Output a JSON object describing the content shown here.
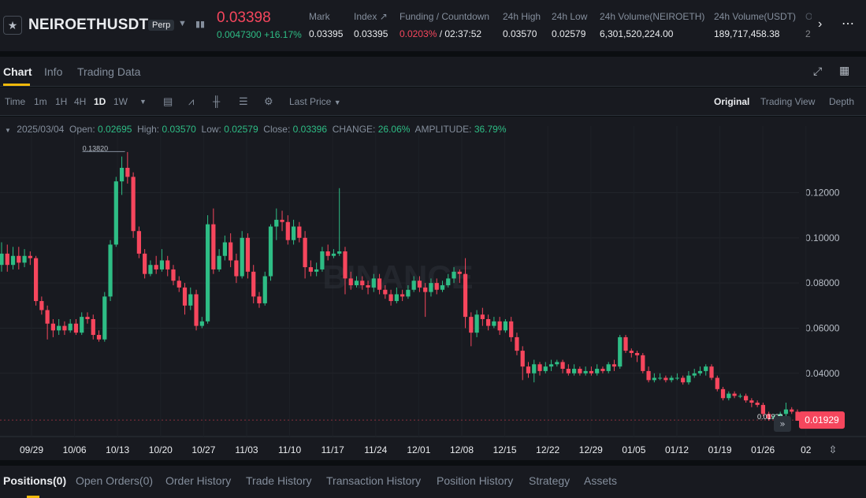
{
  "ticker": {
    "star_icon": "star-icon",
    "symbol": "NEIROETHUSDT",
    "badge": "Perp",
    "caret_icon": "caret-down-icon",
    "chart_icon": "mini-chart-icon",
    "last_price": "0.03398",
    "change_abs": "0.0047300",
    "change_pct": "+16.17%",
    "stats": [
      {
        "label": "Mark",
        "value": "0.03395"
      },
      {
        "label": "Index ↗",
        "value": "0.03395"
      },
      {
        "label": "Funding / Countdown",
        "value_red": "0.0203%",
        "value": " / 02:37:52"
      },
      {
        "label": "24h High",
        "value": "0.03570"
      },
      {
        "label": "24h Low",
        "value": "0.02579"
      },
      {
        "label": "24h Volume(NEIROETH)",
        "value": "6,301,520,224.00"
      },
      {
        "label": "24h Volume(USDT)",
        "value": "189,717,458.38"
      },
      {
        "label": "O",
        "value": "2"
      }
    ]
  },
  "chart_tabs": {
    "items": [
      "Chart",
      "Info",
      "Trading Data"
    ],
    "active": "Chart"
  },
  "toolbar": {
    "time_label": "Time",
    "intervals": [
      "1m",
      "1H",
      "4H",
      "1D",
      "1W"
    ],
    "active_interval": "1D",
    "price_type": "Last Price",
    "views": [
      "Original",
      "Trading View",
      "Depth"
    ],
    "active_view": "Original"
  },
  "ohlc": {
    "date": "2025/03/04",
    "open_label": "Open:",
    "open": "0.02695",
    "high_label": "High:",
    "high": "0.03570",
    "low_label": "Low:",
    "low": "0.02579",
    "close_label": "Close:",
    "close": "0.03396",
    "change_label": "CHANGE:",
    "change": "26.06%",
    "amplitude_label": "AMPLITUDE:",
    "amplitude": "36.79%"
  },
  "chart_data": {
    "type": "candlestick",
    "y_ticks": [
      "0.12000",
      "0.10000",
      "0.08000",
      "0.06000",
      "0.04000"
    ],
    "x_labels": [
      "09/29",
      "10/06",
      "10/13",
      "10/20",
      "10/27",
      "11/03",
      "11/10",
      "11/17",
      "11/24",
      "12/01",
      "12/08",
      "12/15",
      "12/22",
      "12/29",
      "01/05",
      "01/12",
      "01/19",
      "01/26",
      "02"
    ],
    "max_label": "0.13820",
    "min_label": "0.01929",
    "current_price_label": "0.01929",
    "watermark": "BINANCE",
    "ylim": [
      0.012,
      0.146
    ],
    "colors": {
      "up": "#2ebd85",
      "down": "#f6465d"
    },
    "candles": [
      [
        0.088,
        0.093,
        0.098,
        0.085
      ],
      [
        0.093,
        0.088,
        0.097,
        0.085
      ],
      [
        0.088,
        0.092,
        0.096,
        0.086
      ],
      [
        0.092,
        0.089,
        0.096,
        0.086
      ],
      [
        0.089,
        0.092,
        0.095,
        0.087
      ],
      [
        0.092,
        0.091,
        0.094,
        0.088
      ],
      [
        0.091,
        0.072,
        0.092,
        0.07
      ],
      [
        0.072,
        0.068,
        0.074,
        0.066
      ],
      [
        0.068,
        0.062,
        0.07,
        0.055
      ],
      [
        0.062,
        0.059,
        0.064,
        0.056
      ],
      [
        0.059,
        0.061,
        0.064,
        0.057
      ],
      [
        0.061,
        0.059,
        0.063,
        0.057
      ],
      [
        0.059,
        0.062,
        0.064,
        0.058
      ],
      [
        0.062,
        0.058,
        0.064,
        0.057
      ],
      [
        0.058,
        0.065,
        0.067,
        0.057
      ],
      [
        0.065,
        0.064,
        0.067,
        0.062
      ],
      [
        0.064,
        0.057,
        0.066,
        0.055
      ],
      [
        0.057,
        0.055,
        0.059,
        0.054
      ],
      [
        0.055,
        0.074,
        0.076,
        0.054
      ],
      [
        0.074,
        0.097,
        0.099,
        0.072
      ],
      [
        0.097,
        0.125,
        0.127,
        0.096
      ],
      [
        0.125,
        0.131,
        0.136,
        0.119
      ],
      [
        0.131,
        0.127,
        0.138,
        0.124
      ],
      [
        0.127,
        0.103,
        0.129,
        0.1
      ],
      [
        0.103,
        0.093,
        0.105,
        0.091
      ],
      [
        0.093,
        0.084,
        0.095,
        0.082
      ],
      [
        0.084,
        0.088,
        0.09,
        0.083
      ],
      [
        0.088,
        0.086,
        0.092,
        0.084
      ],
      [
        0.086,
        0.09,
        0.095,
        0.085
      ],
      [
        0.09,
        0.086,
        0.092,
        0.083
      ],
      [
        0.086,
        0.081,
        0.088,
        0.079
      ],
      [
        0.081,
        0.078,
        0.083,
        0.076
      ],
      [
        0.078,
        0.07,
        0.08,
        0.066
      ],
      [
        0.07,
        0.075,
        0.078,
        0.068
      ],
      [
        0.075,
        0.061,
        0.077,
        0.059
      ],
      [
        0.061,
        0.063,
        0.065,
        0.06
      ],
      [
        0.063,
        0.106,
        0.11,
        0.062
      ],
      [
        0.106,
        0.086,
        0.113,
        0.084
      ],
      [
        0.086,
        0.092,
        0.095,
        0.085
      ],
      [
        0.092,
        0.098,
        0.101,
        0.09
      ],
      [
        0.098,
        0.09,
        0.102,
        0.087
      ],
      [
        0.09,
        0.083,
        0.093,
        0.08
      ],
      [
        0.083,
        0.1,
        0.103,
        0.082
      ],
      [
        0.1,
        0.085,
        0.102,
        0.082
      ],
      [
        0.085,
        0.074,
        0.088,
        0.071
      ],
      [
        0.074,
        0.071,
        0.076,
        0.069
      ],
      [
        0.071,
        0.083,
        0.085,
        0.07
      ],
      [
        0.083,
        0.105,
        0.106,
        0.081
      ],
      [
        0.105,
        0.108,
        0.113,
        0.099
      ],
      [
        0.108,
        0.107,
        0.112,
        0.103
      ],
      [
        0.107,
        0.099,
        0.11,
        0.097
      ],
      [
        0.099,
        0.105,
        0.108,
        0.097
      ],
      [
        0.105,
        0.1,
        0.107,
        0.098
      ],
      [
        0.1,
        0.087,
        0.103,
        0.082
      ],
      [
        0.087,
        0.085,
        0.09,
        0.083
      ],
      [
        0.085,
        0.086,
        0.089,
        0.083
      ],
      [
        0.086,
        0.094,
        0.096,
        0.085
      ],
      [
        0.094,
        0.092,
        0.097,
        0.09
      ],
      [
        0.092,
        0.093,
        0.095,
        0.091
      ],
      [
        0.093,
        0.094,
        0.122,
        0.092
      ],
      [
        0.094,
        0.082,
        0.096,
        0.075
      ],
      [
        0.082,
        0.079,
        0.085,
        0.077
      ],
      [
        0.079,
        0.081,
        0.083,
        0.078
      ],
      [
        0.081,
        0.079,
        0.083,
        0.077
      ],
      [
        0.079,
        0.078,
        0.081,
        0.075
      ],
      [
        0.078,
        0.082,
        0.084,
        0.076
      ],
      [
        0.082,
        0.077,
        0.084,
        0.075
      ],
      [
        0.077,
        0.075,
        0.079,
        0.073
      ],
      [
        0.075,
        0.072,
        0.077,
        0.07
      ],
      [
        0.072,
        0.075,
        0.078,
        0.071
      ],
      [
        0.075,
        0.074,
        0.077,
        0.072
      ],
      [
        0.074,
        0.077,
        0.079,
        0.073
      ],
      [
        0.077,
        0.081,
        0.083,
        0.076
      ],
      [
        0.081,
        0.078,
        0.083,
        0.076
      ],
      [
        0.078,
        0.076,
        0.08,
        0.065
      ],
      [
        0.076,
        0.08,
        0.082,
        0.074
      ],
      [
        0.08,
        0.077,
        0.082,
        0.075
      ],
      [
        0.077,
        0.079,
        0.081,
        0.076
      ],
      [
        0.079,
        0.082,
        0.084,
        0.078
      ],
      [
        0.082,
        0.085,
        0.087,
        0.08
      ],
      [
        0.085,
        0.084,
        0.086,
        0.08
      ],
      [
        0.084,
        0.065,
        0.091,
        0.06
      ],
      [
        0.065,
        0.058,
        0.067,
        0.052
      ],
      [
        0.058,
        0.066,
        0.068,
        0.056
      ],
      [
        0.066,
        0.064,
        0.069,
        0.061
      ],
      [
        0.064,
        0.061,
        0.066,
        0.059
      ],
      [
        0.061,
        0.063,
        0.065,
        0.06
      ],
      [
        0.063,
        0.059,
        0.065,
        0.057
      ],
      [
        0.059,
        0.063,
        0.064,
        0.058
      ],
      [
        0.063,
        0.056,
        0.065,
        0.054
      ],
      [
        0.056,
        0.05,
        0.058,
        0.048
      ],
      [
        0.05,
        0.043,
        0.052,
        0.037
      ],
      [
        0.043,
        0.04,
        0.045,
        0.038
      ],
      [
        0.04,
        0.044,
        0.046,
        0.036
      ],
      [
        0.044,
        0.041,
        0.045,
        0.039
      ],
      [
        0.041,
        0.043,
        0.045,
        0.04
      ],
      [
        0.043,
        0.044,
        0.046,
        0.041
      ],
      [
        0.044,
        0.045,
        0.046,
        0.043
      ],
      [
        0.045,
        0.042,
        0.046,
        0.04
      ],
      [
        0.042,
        0.04,
        0.044,
        0.039
      ],
      [
        0.04,
        0.042,
        0.044,
        0.039
      ],
      [
        0.042,
        0.04,
        0.043,
        0.039
      ],
      [
        0.04,
        0.041,
        0.043,
        0.039
      ],
      [
        0.041,
        0.04,
        0.043,
        0.039
      ],
      [
        0.04,
        0.042,
        0.044,
        0.039
      ],
      [
        0.042,
        0.041,
        0.043,
        0.04
      ],
      [
        0.041,
        0.044,
        0.045,
        0.04
      ],
      [
        0.044,
        0.043,
        0.046,
        0.041
      ],
      [
        0.043,
        0.056,
        0.057,
        0.042
      ],
      [
        0.056,
        0.05,
        0.057,
        0.049
      ],
      [
        0.05,
        0.049,
        0.051,
        0.047
      ],
      [
        0.049,
        0.048,
        0.05,
        0.045
      ],
      [
        0.048,
        0.041,
        0.049,
        0.04
      ],
      [
        0.041,
        0.037,
        0.043,
        0.036
      ],
      [
        0.037,
        0.038,
        0.04,
        0.036
      ],
      [
        0.038,
        0.038,
        0.04,
        0.037
      ],
      [
        0.038,
        0.037,
        0.039,
        0.036
      ],
      [
        0.037,
        0.038,
        0.039,
        0.036
      ],
      [
        0.038,
        0.038,
        0.04,
        0.037
      ],
      [
        0.038,
        0.036,
        0.039,
        0.035
      ],
      [
        0.036,
        0.039,
        0.041,
        0.035
      ],
      [
        0.039,
        0.04,
        0.042,
        0.038
      ],
      [
        0.04,
        0.041,
        0.043,
        0.039
      ],
      [
        0.041,
        0.043,
        0.044,
        0.039
      ],
      [
        0.043,
        0.038,
        0.044,
        0.037
      ],
      [
        0.038,
        0.033,
        0.039,
        0.032
      ],
      [
        0.033,
        0.029,
        0.034,
        0.028
      ],
      [
        0.029,
        0.031,
        0.032,
        0.028
      ],
      [
        0.031,
        0.03,
        0.032,
        0.029
      ],
      [
        0.03,
        0.03,
        0.031,
        0.029
      ],
      [
        0.03,
        0.028,
        0.031,
        0.027
      ],
      [
        0.028,
        0.027,
        0.029,
        0.025
      ],
      [
        0.027,
        0.026,
        0.028,
        0.025
      ],
      [
        0.026,
        0.022,
        0.027,
        0.021
      ],
      [
        0.022,
        0.02,
        0.023,
        0.019
      ],
      [
        0.02,
        0.021,
        0.022,
        0.019
      ],
      [
        0.021,
        0.022,
        0.023,
        0.02
      ],
      [
        0.022,
        0.024,
        0.027,
        0.021
      ],
      [
        0.024,
        0.023,
        0.025,
        0.022
      ],
      [
        0.023,
        0.019,
        0.024,
        0.019
      ]
    ]
  },
  "chart_footer": {
    "scroll_icon": "double-chevron-right-icon",
    "scale_icon": "scale-icon"
  },
  "bottom_tabs": {
    "items": [
      "Positions(0)",
      "Open Orders(0)",
      "Order History",
      "Trade History",
      "Transaction History",
      "Position History",
      "Strategy",
      "Assets"
    ],
    "active": "Positions(0)"
  }
}
